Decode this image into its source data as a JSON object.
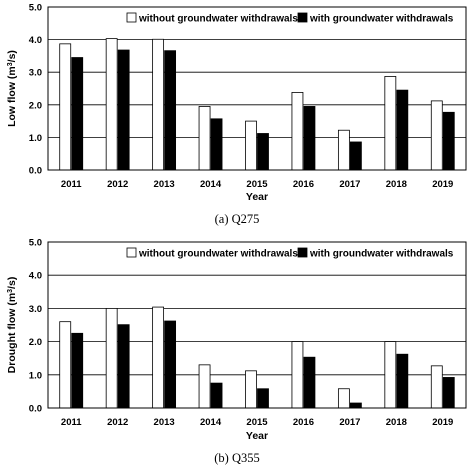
{
  "chart_data": [
    {
      "type": "bar",
      "caption": "(a) Q275",
      "xlabel": "Year",
      "ylabel": "Low flow (m",
      "ylabel_sup": "3",
      "ylabel_end": "/s)",
      "ylim": [
        0,
        5
      ],
      "yticks": [
        "0.0",
        "1.0",
        "2.0",
        "3.0",
        "4.0",
        "5.0"
      ],
      "grid": true,
      "legend_position": "top-right",
      "categories": [
        "2011",
        "2012",
        "2013",
        "2014",
        "2015",
        "2016",
        "2017",
        "2018",
        "2019"
      ],
      "series": [
        {
          "name": "without groundwater withdrawals",
          "color": "#ffffff",
          "values": [
            3.87,
            4.03,
            4.01,
            1.95,
            1.5,
            2.38,
            1.22,
            2.87,
            2.12
          ]
        },
        {
          "name": "with groundwater withdrawals",
          "color": "#000000",
          "values": [
            3.45,
            3.68,
            3.66,
            1.57,
            1.12,
            1.95,
            0.86,
            2.45,
            1.77
          ]
        }
      ]
    },
    {
      "type": "bar",
      "caption": "(b) Q355",
      "xlabel": "Year",
      "ylabel": "Drought flow (m",
      "ylabel_sup": "3",
      "ylabel_end": "/s)",
      "ylim": [
        0,
        5
      ],
      "yticks": [
        "0.0",
        "1.0",
        "2.0",
        "3.0",
        "4.0",
        "5.0"
      ],
      "grid": true,
      "legend_position": "top-right",
      "categories": [
        "2011",
        "2012",
        "2013",
        "2014",
        "2015",
        "2016",
        "2017",
        "2018",
        "2019"
      ],
      "series": [
        {
          "name": "without groundwater withdrawals",
          "color": "#ffffff",
          "values": [
            2.6,
            3.0,
            3.04,
            1.3,
            1.12,
            2.0,
            0.58,
            2.0,
            1.27
          ]
        },
        {
          "name": "with groundwater withdrawals",
          "color": "#000000",
          "values": [
            2.25,
            2.51,
            2.62,
            0.75,
            0.58,
            1.53,
            0.15,
            1.62,
            0.92
          ]
        }
      ]
    }
  ]
}
